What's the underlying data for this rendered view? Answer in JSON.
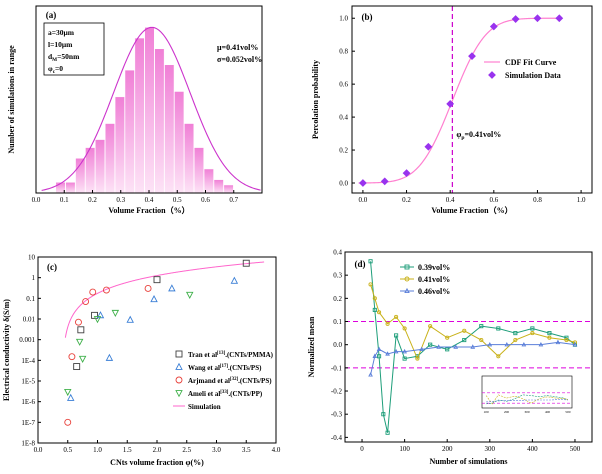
{
  "chart_data": [
    {
      "panel": "(a)",
      "type": "bar",
      "xlabel": "Volume Fraction（%）",
      "ylabel": "Number of simulations in range",
      "xlim": [
        0,
        0.8
      ],
      "ylim": [
        0,
        70
      ],
      "xticks": [
        "0.0",
        "0.1",
        "0.2",
        "0.3",
        "0.4",
        "0.5",
        "0.6",
        "0.7"
      ],
      "bin_width": 0.035,
      "bin_centers": [
        0.0875,
        0.1225,
        0.1575,
        0.1925,
        0.2275,
        0.2625,
        0.2975,
        0.3325,
        0.3675,
        0.4025,
        0.4375,
        0.4725,
        0.5075,
        0.5425,
        0.5775,
        0.6125,
        0.6475,
        0.6825
      ],
      "values": [
        4,
        4,
        13,
        17,
        20,
        26,
        36,
        46,
        58,
        62,
        54,
        48,
        38,
        26,
        17,
        9,
        5,
        3
      ],
      "fit_curve": {
        "type": "normal",
        "mu": 0.41,
        "sigma": 0.052
      },
      "params_box": [
        {
          "lines": [
            "a=30μm",
            "l=10μm",
            "d",
            "φ"
          ],
          "labels": [
            "a=30μm",
            "l=10μm"
          ],
          "d_main": "d",
          "d_sub": "M",
          "d_rest": "=50nm",
          "phi_main": "φ",
          "phi_sub": "c",
          "phi_rest": "=0"
        }
      ],
      "annotations": {
        "mu": "μ=0.41vol%",
        "sigma": "σ=0.052vol%"
      }
    },
    {
      "panel": "(b)",
      "type": "scatter",
      "xlabel": "Volume Fraction（%）",
      "ylabel": "Percolation probability",
      "xlim": [
        0,
        1.0
      ],
      "ylim": [
        0,
        1.05
      ],
      "xticks": [
        "0.0",
        "0.2",
        "0.4",
        "0.6",
        "0.8",
        "1.0"
      ],
      "yticks": [
        "0.0",
        "0.2",
        "0.4",
        "0.6",
        "0.8",
        "1.0"
      ],
      "x": [
        0.0,
        0.1,
        0.2,
        0.3,
        0.4,
        0.5,
        0.6,
        0.7,
        0.8,
        0.9
      ],
      "y": [
        0.0,
        0.01,
        0.06,
        0.22,
        0.48,
        0.77,
        0.95,
        0.995,
        1.0,
        1.0
      ],
      "fit_curve": {
        "type": "cdf",
        "mu": 0.41,
        "sigma": 0.12
      },
      "legend": [
        "CDF Fit Curve",
        "Simulation Data"
      ],
      "threshold": 0.41,
      "annotation": {
        "main": "φ",
        "sub": "p",
        "rest": "=0.41vol%"
      }
    },
    {
      "panel": "(c)",
      "type": "scatter",
      "xlabel": "CNts volume fraction φ(%)",
      "ylabel": "Electrical conductivity δ(S/m)",
      "xlim": [
        0,
        4.0
      ],
      "ylim_log10": [
        -8,
        1
      ],
      "xticks": [
        "0.0",
        "0.5",
        "1.0",
        "1.5",
        "2.0",
        "2.5",
        "3.0",
        "3.5",
        "4.0"
      ],
      "yticks": [
        "1E-8",
        "1E-7",
        "1E-6",
        "1E-5",
        "1E-4",
        "0.001",
        "0.01",
        "0.1",
        "1",
        "10"
      ],
      "series": [
        {
          "name": "Tran et al",
          "ref": "[13]",
          "suffix": ".(CNTs/PMMA)",
          "marker": "square",
          "color": "#404040",
          "x": [
            0.65,
            0.72,
            0.95,
            2.0,
            3.5
          ],
          "y": [
            5e-05,
            0.003,
            0.015,
            0.8,
            5
          ]
        },
        {
          "name": "Wang et al",
          "ref": "[17]",
          "suffix": ".(CNTs/PS)",
          "marker": "triangle",
          "color": "#3a7fd6",
          "x": [
            0.55,
            1.05,
            1.2,
            1.55,
            1.95,
            2.25,
            3.3
          ],
          "y": [
            1.5e-06,
            0.015,
            0.00013,
            0.009,
            0.09,
            0.3,
            0.7
          ]
        },
        {
          "name": "Arjmand et al",
          "ref": "[32]",
          "suffix": ".(CNTs/PS)",
          "marker": "circle",
          "color": "#e8403a",
          "x": [
            0.5,
            0.57,
            0.68,
            0.8,
            0.92,
            1.15,
            1.85
          ],
          "y": [
            1e-07,
            0.00015,
            0.007,
            0.07,
            0.2,
            0.25,
            0.3
          ]
        },
        {
          "name": "Ameli et al",
          "ref": "[33]",
          "suffix": ".(CNTs/PP)",
          "marker": "triangle-down",
          "color": "#3fb04a",
          "x": [
            0.5,
            0.7,
            0.75,
            1.0,
            1.3,
            2.55
          ],
          "y": [
            3e-06,
            0.0008,
            0.00012,
            0.01,
            0.02,
            0.15
          ]
        }
      ],
      "simulation_curve": {
        "name": "Simulation",
        "phi_c": 0.41,
        "t": 2.0,
        "sigma0": 1.0,
        "color": "#ff66cc"
      }
    },
    {
      "panel": "(d)",
      "type": "line",
      "xlabel": "Number of simulations",
      "ylabel": "Normalized mean",
      "xlim": [
        -40,
        540
      ],
      "ylim": [
        -0.42,
        0.4
      ],
      "xticks": [
        "0",
        "100",
        "200",
        "300",
        "400",
        "500"
      ],
      "yticks": [
        "-0.4",
        "-0.3",
        "-0.2",
        "-0.1",
        "0.0",
        "0.1",
        "0.2",
        "0.3",
        "0.4"
      ],
      "ref_lines": [
        0.1,
        -0.1
      ],
      "series": [
        {
          "name": "0.39vol%",
          "marker": "square",
          "color": "#1e9e7a",
          "x": [
            20,
            30,
            40,
            50,
            60,
            80,
            100,
            130,
            160,
            200,
            240,
            280,
            320,
            360,
            400,
            440,
            480,
            500
          ],
          "y": [
            0.36,
            0.15,
            -0.05,
            -0.3,
            -0.38,
            0.04,
            -0.06,
            -0.05,
            0.0,
            -0.02,
            0.02,
            0.08,
            0.07,
            0.05,
            0.07,
            0.05,
            0.03,
            0.0
          ]
        },
        {
          "name": "0.41vol%",
          "marker": "circle",
          "color": "#c9b21a",
          "x": [
            20,
            30,
            40,
            60,
            80,
            100,
            130,
            160,
            200,
            240,
            280,
            320,
            360,
            400,
            440,
            480,
            500
          ],
          "y": [
            0.26,
            0.2,
            0.14,
            0.09,
            0.12,
            0.07,
            -0.06,
            0.08,
            0.03,
            0.06,
            0.02,
            -0.05,
            0.02,
            0.05,
            0.03,
            0.02,
            0.01
          ]
        },
        {
          "name": "0.46vol%",
          "marker": "triangle",
          "color": "#5b7fd9",
          "x": [
            20,
            30,
            40,
            60,
            80,
            100,
            140,
            180,
            220,
            260,
            300,
            340,
            380,
            420,
            460,
            500
          ],
          "y": [
            -0.13,
            -0.05,
            -0.02,
            -0.04,
            -0.03,
            -0.03,
            -0.02,
            -0.01,
            -0.01,
            -0.01,
            0.0,
            0.0,
            0.0,
            0.0,
            0.01,
            0.0
          ]
        }
      ],
      "inset": {
        "xticks": [
          "100",
          "200",
          "300",
          "400",
          "500"
        ]
      }
    }
  ]
}
